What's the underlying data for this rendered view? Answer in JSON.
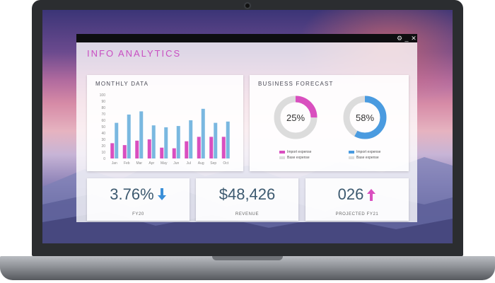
{
  "app": {
    "title": "INFO ANALYTICS",
    "window_controls": [
      "⚙",
      "_",
      "✕"
    ]
  },
  "monthly_data": {
    "title": "MONTHLY DATA",
    "chart_data": {
      "type": "bar",
      "categories": [
        "Jan",
        "Feb",
        "Mar",
        "Apr",
        "May",
        "Jun",
        "Jul",
        "Aug",
        "Sep",
        "Oct"
      ],
      "series": [
        {
          "values": [
            24,
            21,
            28,
            30,
            17,
            16,
            27,
            34,
            34,
            34
          ],
          "color": "#d94fbf"
        },
        {
          "values": [
            56,
            69,
            74,
            52,
            49,
            51,
            60,
            78,
            56,
            58
          ],
          "color": "#7ab8e0"
        }
      ],
      "ylim": [
        0,
        100
      ],
      "y_ticks": [
        "100",
        "90",
        "80",
        "70",
        "60",
        "50",
        "40",
        "30",
        "20",
        "10",
        "0"
      ]
    }
  },
  "business_forecast": {
    "title": "BUSINESS FORECAST",
    "charts": [
      {
        "type": "pie",
        "value": 25,
        "label": "25%",
        "color": "#d94fbf",
        "legend": [
          "Import expense",
          "Base expense"
        ]
      },
      {
        "type": "pie",
        "value": 58,
        "label": "58%",
        "color": "#4a9be0",
        "legend": [
          "Import expense",
          "Base expense"
        ]
      }
    ],
    "base_color": "#dcdcdc"
  },
  "stats": [
    {
      "value": "3.76%",
      "caption": "FY20",
      "trend": "down",
      "trend_color": "#3a8fd8"
    },
    {
      "value": "$48,426",
      "caption": "REVENUE"
    },
    {
      "value": "026",
      "caption": "PROJECTED FY21",
      "trend": "up",
      "trend_color": "#d94fbf"
    }
  ]
}
